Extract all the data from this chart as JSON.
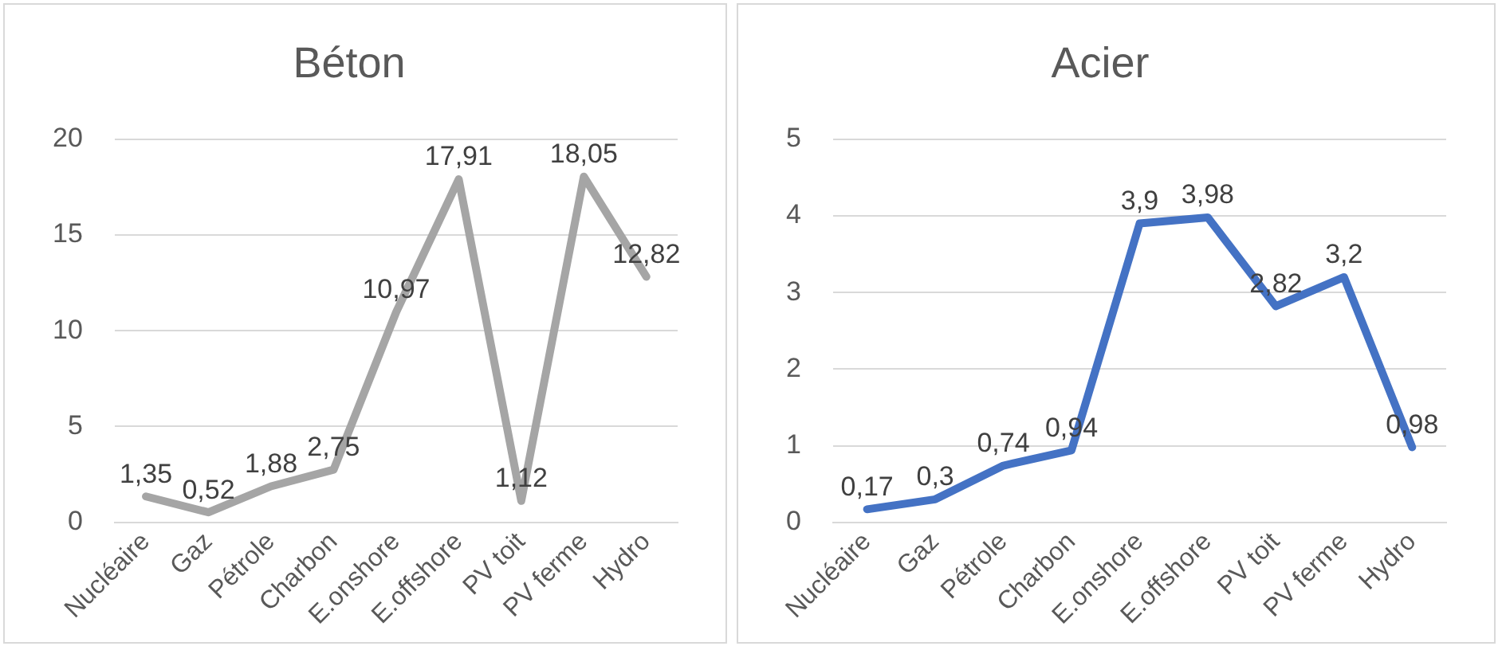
{
  "chart_data": [
    {
      "type": "line",
      "title": "Béton",
      "categories": [
        "Nucléaire",
        "Gaz",
        "Pétrole",
        "Charbon",
        "E.onshore",
        "E.offshore",
        "PV toit",
        "PV ferme",
        "Hydro"
      ],
      "series": [
        {
          "color": "#a5a5a5",
          "values": [
            1.35,
            0.52,
            1.88,
            2.75,
            10.97,
            17.91,
            1.12,
            18.05,
            12.82
          ],
          "value_labels": [
            "1,35",
            "0,52",
            "1,88",
            "2,75",
            "10,97",
            "17,91",
            "1,12",
            "18,05",
            "12,82"
          ]
        }
      ],
      "ylim": [
        0,
        20
      ],
      "yticks": [
        0,
        5,
        10,
        15,
        20
      ],
      "grid": "y",
      "legend": false,
      "marker": "none",
      "line_style": "solid"
    },
    {
      "type": "line",
      "title": "Acier",
      "categories": [
        "Nucléaire",
        "Gaz",
        "Pétrole",
        "Charbon",
        "E.onshore",
        "E.offshore",
        "PV toit",
        "PV ferme",
        "Hydro"
      ],
      "series": [
        {
          "color": "#4472c4",
          "values": [
            0.17,
            0.3,
            0.74,
            0.94,
            3.9,
            3.98,
            2.82,
            3.2,
            0.98
          ],
          "value_labels": [
            "0,17",
            "0,3",
            "0,74",
            "0,94",
            "3,9",
            "3,98",
            "2,82",
            "3,2",
            "0,98"
          ]
        }
      ],
      "ylim": [
        0,
        5
      ],
      "yticks": [
        0,
        1,
        2,
        3,
        4,
        5
      ],
      "grid": "y",
      "legend": false,
      "marker": "none",
      "line_style": "solid"
    }
  ]
}
